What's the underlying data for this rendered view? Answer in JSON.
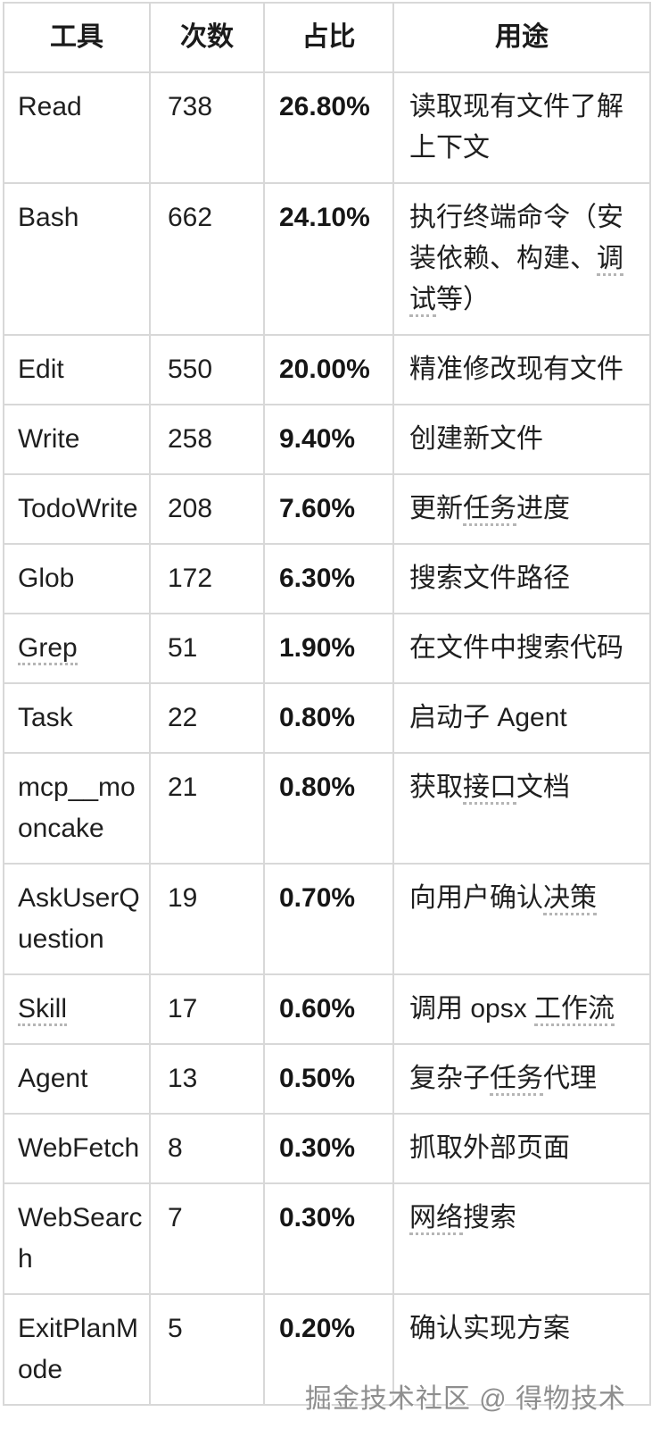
{
  "table": {
    "headers": [
      "工具",
      "次数",
      "占比",
      "用途"
    ],
    "rows": [
      {
        "tool": "Read",
        "tool_underline": false,
        "count": "738",
        "percent": "26.80%",
        "usage": [
          {
            "text": "读取现有文件了解上下文",
            "underline": false
          }
        ]
      },
      {
        "tool": "Bash",
        "tool_underline": false,
        "count": "662",
        "percent": "24.10%",
        "usage": [
          {
            "text": "执行终端命令（安装依赖、构建、",
            "underline": false
          },
          {
            "text": "调试",
            "underline": true
          },
          {
            "text": "等）",
            "underline": false
          }
        ]
      },
      {
        "tool": "Edit",
        "tool_underline": false,
        "count": "550",
        "percent": "20.00%",
        "usage": [
          {
            "text": "精准修改现有文件",
            "underline": false
          }
        ]
      },
      {
        "tool": "Write",
        "tool_underline": false,
        "count": "258",
        "percent": "9.40%",
        "usage": [
          {
            "text": "创建新文件",
            "underline": false
          }
        ]
      },
      {
        "tool": "TodoWrite",
        "tool_underline": false,
        "count": "208",
        "percent": "7.60%",
        "usage": [
          {
            "text": "更新",
            "underline": false
          },
          {
            "text": "任务",
            "underline": true
          },
          {
            "text": "进度",
            "underline": false
          }
        ]
      },
      {
        "tool": "Glob",
        "tool_underline": false,
        "count": "172",
        "percent": "6.30%",
        "usage": [
          {
            "text": "搜索文件路径",
            "underline": false
          }
        ]
      },
      {
        "tool": "Grep",
        "tool_underline": true,
        "count": "51",
        "percent": "1.90%",
        "usage": [
          {
            "text": "在文件中搜索代码",
            "underline": false
          }
        ]
      },
      {
        "tool": "Task",
        "tool_underline": false,
        "count": "22",
        "percent": "0.80%",
        "usage": [
          {
            "text": "启动子 Agent",
            "underline": false
          }
        ]
      },
      {
        "tool": "mcp__mooncake",
        "tool_underline": false,
        "count": "21",
        "percent": "0.80%",
        "usage": [
          {
            "text": "获取",
            "underline": false
          },
          {
            "text": "接口",
            "underline": true
          },
          {
            "text": "文档",
            "underline": false
          }
        ]
      },
      {
        "tool": "AskUserQuestion",
        "tool_underline": false,
        "count": "19",
        "percent": "0.70%",
        "usage": [
          {
            "text": "向用户确认",
            "underline": false
          },
          {
            "text": "决策",
            "underline": true
          }
        ]
      },
      {
        "tool": "Skill",
        "tool_underline": true,
        "count": "17",
        "percent": "0.60%",
        "usage": [
          {
            "text": "调用 opsx ",
            "underline": false
          },
          {
            "text": "工作流",
            "underline": true
          }
        ]
      },
      {
        "tool": "Agent",
        "tool_underline": false,
        "count": "13",
        "percent": "0.50%",
        "usage": [
          {
            "text": "复杂子",
            "underline": false
          },
          {
            "text": "任务",
            "underline": true
          },
          {
            "text": "代理",
            "underline": false
          }
        ]
      },
      {
        "tool": "WebFetch",
        "tool_underline": false,
        "count": "8",
        "percent": "0.30%",
        "usage": [
          {
            "text": "抓取外部页面",
            "underline": false
          }
        ]
      },
      {
        "tool": "WebSearch",
        "tool_underline": false,
        "count": "7",
        "percent": "0.30%",
        "usage": [
          {
            "text": "网络",
            "underline": true
          },
          {
            "text": "搜索",
            "underline": false
          }
        ]
      },
      {
        "tool": "ExitPlanMode",
        "tool_underline": false,
        "count": "5",
        "percent": "0.20%",
        "usage": [
          {
            "text": "确认实现方案",
            "underline": false
          }
        ]
      }
    ]
  },
  "watermark": {
    "text": "掘金技术社区 @ 得物技术"
  },
  "colors": {
    "border": "#d8d8d8",
    "text": "#1f1f1f",
    "dotted_underline": "#b5b5b5",
    "watermark": "#8e8e8e"
  },
  "chart_data": {
    "type": "table",
    "title": "工具调用统计",
    "columns": [
      "工具",
      "次数",
      "占比",
      "用途"
    ],
    "rows": [
      [
        "Read",
        738,
        "26.80%",
        "读取现有文件了解上下文"
      ],
      [
        "Bash",
        662,
        "24.10%",
        "执行终端命令（安装依赖、构建、调试等）"
      ],
      [
        "Edit",
        550,
        "20.00%",
        "精准修改现有文件"
      ],
      [
        "Write",
        258,
        "9.40%",
        "创建新文件"
      ],
      [
        "TodoWrite",
        208,
        "7.60%",
        "更新任务进度"
      ],
      [
        "Glob",
        172,
        "6.30%",
        "搜索文件路径"
      ],
      [
        "Grep",
        51,
        "1.90%",
        "在文件中搜索代码"
      ],
      [
        "Task",
        22,
        "0.80%",
        "启动子 Agent"
      ],
      [
        "mcp__mooncake",
        21,
        "0.80%",
        "获取接口文档"
      ],
      [
        "AskUserQuestion",
        19,
        "0.70%",
        "向用户确认决策"
      ],
      [
        "Skill",
        17,
        "0.60%",
        "调用 opsx 工作流"
      ],
      [
        "Agent",
        13,
        "0.50%",
        "复杂子任务代理"
      ],
      [
        "WebFetch",
        8,
        "0.30%",
        "抓取外部页面"
      ],
      [
        "WebSearch",
        7,
        "0.30%",
        "网络搜索"
      ],
      [
        "ExitPlanMode",
        5,
        "0.20%",
        "确认实现方案"
      ]
    ]
  }
}
